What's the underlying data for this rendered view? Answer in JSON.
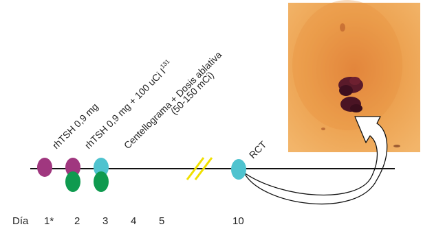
{
  "diagram": {
    "events": [
      {
        "label": "rhTSH 0,9 mg",
        "label_sup": ""
      },
      {
        "label": "rhTSH 0,9 mg + 100 uCi I",
        "label_sup": "131"
      },
      {
        "label": "Centellograma + Dosis ablativa",
        "label_line2": "(50-150 mCi)"
      },
      {
        "label": "RCT"
      }
    ],
    "days": {
      "prefix": "Día",
      "values": [
        "1*",
        "2",
        "3",
        "4",
        "5",
        "10"
      ]
    },
    "colors": {
      "purple": "#a0377f",
      "green": "#0f9a4f",
      "cyan": "#4fc3cf",
      "break_mark": "#f0e000",
      "axis": "#111111",
      "scan_bg": "#e89a45"
    },
    "icons": [
      "timeline-axis",
      "time-break-icon",
      "curved-arrow-icon",
      "scan-image"
    ]
  }
}
